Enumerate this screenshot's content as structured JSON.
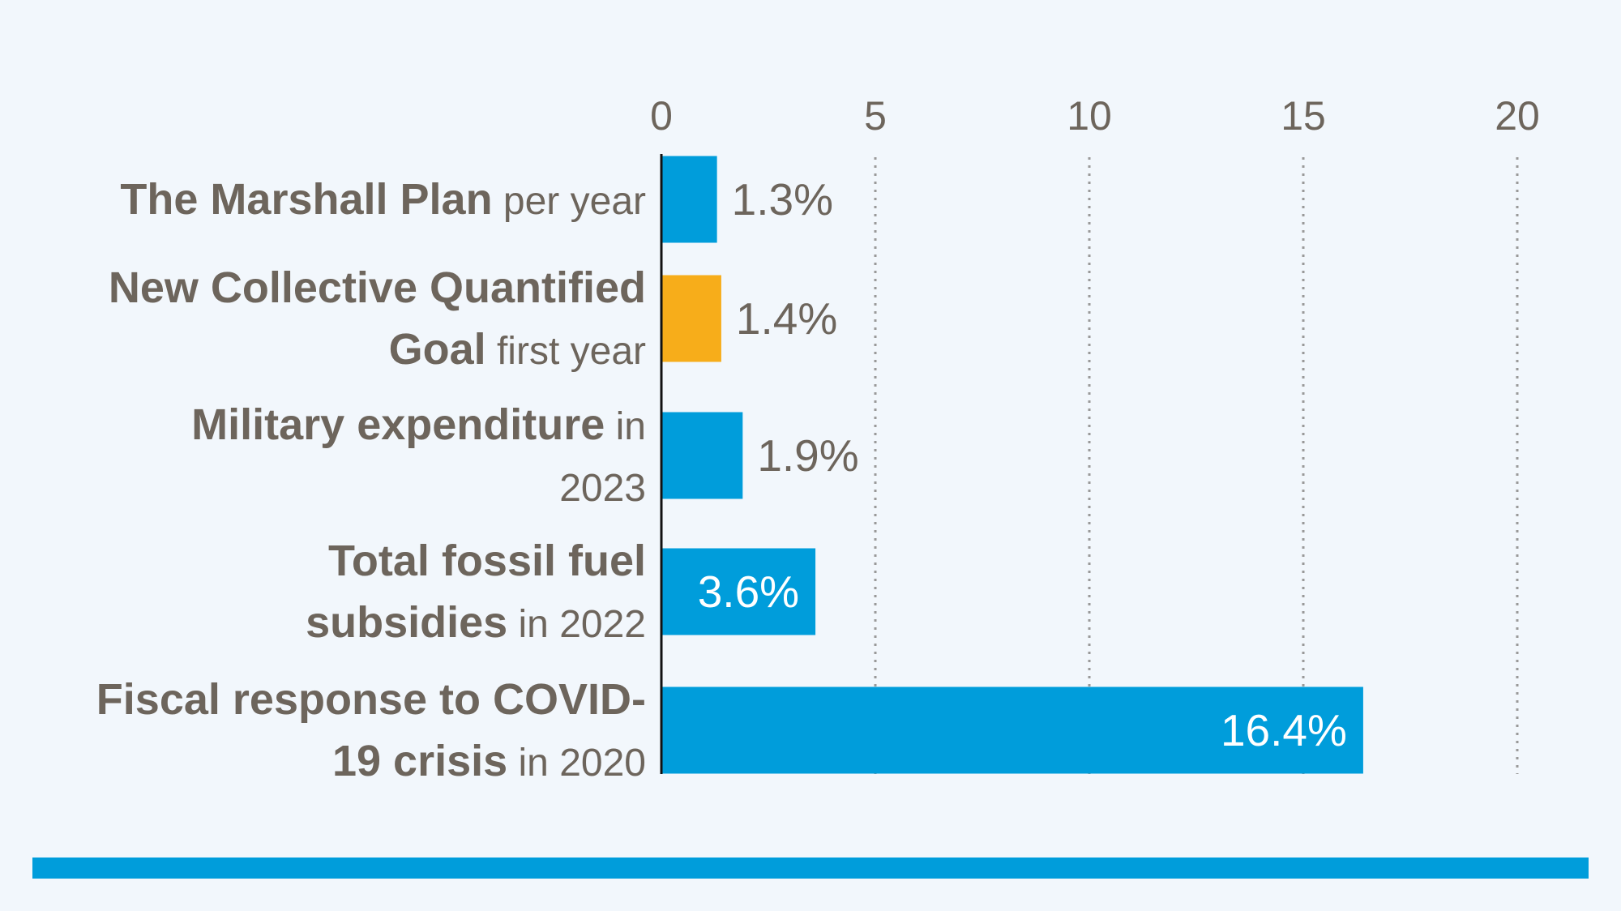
{
  "chart_data": {
    "type": "bar",
    "orientation": "horizontal",
    "categories": [
      {
        "bold": "The Marshall Plan",
        "regular": "per year"
      },
      {
        "bold": "New Collective Quantified Goal",
        "regular": "first year"
      },
      {
        "bold": "Military expenditure",
        "regular": "in 2023"
      },
      {
        "bold": "Total fossil fuel subsidies",
        "regular": "in 2022"
      },
      {
        "bold": "Fiscal response to COVID-19 crisis",
        "regular": "in 2020"
      }
    ],
    "values": [
      1.3,
      1.4,
      1.9,
      3.6,
      16.4
    ],
    "value_labels": [
      "1.3%",
      "1.4%",
      "1.9%",
      "3.6%",
      "16.4%"
    ],
    "bar_colors": [
      "#009ddb",
      "#f7ad1a",
      "#009ddb",
      "#009ddb",
      "#009ddb"
    ],
    "xlim": [
      0,
      20
    ],
    "xticks": [
      "0",
      "5",
      "10",
      "15",
      "20"
    ],
    "gridlines": "dotted",
    "title": "",
    "xlabel": "",
    "ylabel": ""
  },
  "colors": {
    "background": "#f2f7fc",
    "text": "#6d655c",
    "primary_bar": "#009ddb",
    "highlight_bar": "#f7ad1a",
    "grid": "#999999",
    "footer_bar": "#009ddb"
  }
}
